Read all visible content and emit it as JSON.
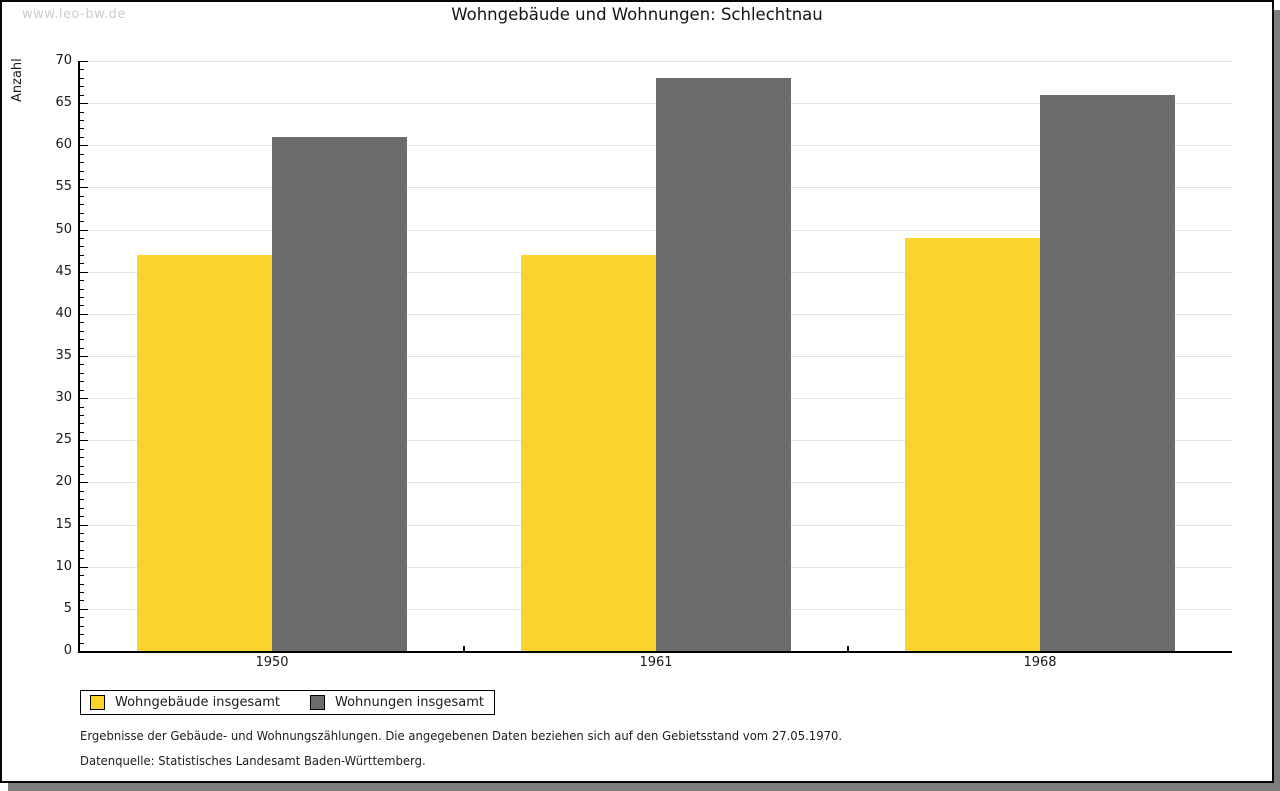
{
  "watermark": "www.leo-bw.de",
  "title": "Wohngebäude und Wohnungen: Schlechtnau",
  "footnotes": [
    "Ergebnisse der Gebäude- und Wohnungszählungen. Die angegebenen Daten beziehen sich auf den Gebietsstand vom 27.05.1970.",
    "Datenquelle: Statistisches Landesamt Baden-Württemberg."
  ],
  "colors": {
    "bar_yellow": "#fcd32b",
    "bar_gray": "#6c6c6c",
    "gridline": "#e2e2e2",
    "axis": "#000000",
    "watermark": "#cccccc",
    "frame_shadow": "#7e7e7e"
  },
  "chart_data": {
    "type": "bar",
    "categories": [
      "1950",
      "1961",
      "1968"
    ],
    "series": [
      {
        "name": "Wohngebäude insgesamt",
        "color": "#fcd32b",
        "values": [
          47,
          47,
          49
        ]
      },
      {
        "name": "Wohnungen insgesamt",
        "color": "#6c6c6c",
        "values": [
          61,
          68,
          66
        ]
      }
    ],
    "title": "Wohngebäude und Wohnungen: Schlechtnau",
    "xlabel": "",
    "ylabel": "Anzahl",
    "ylim": [
      0,
      70
    ],
    "y_major_step": 5,
    "y_minor_step": 1,
    "grid": true,
    "legend_position": "bottom-left"
  }
}
